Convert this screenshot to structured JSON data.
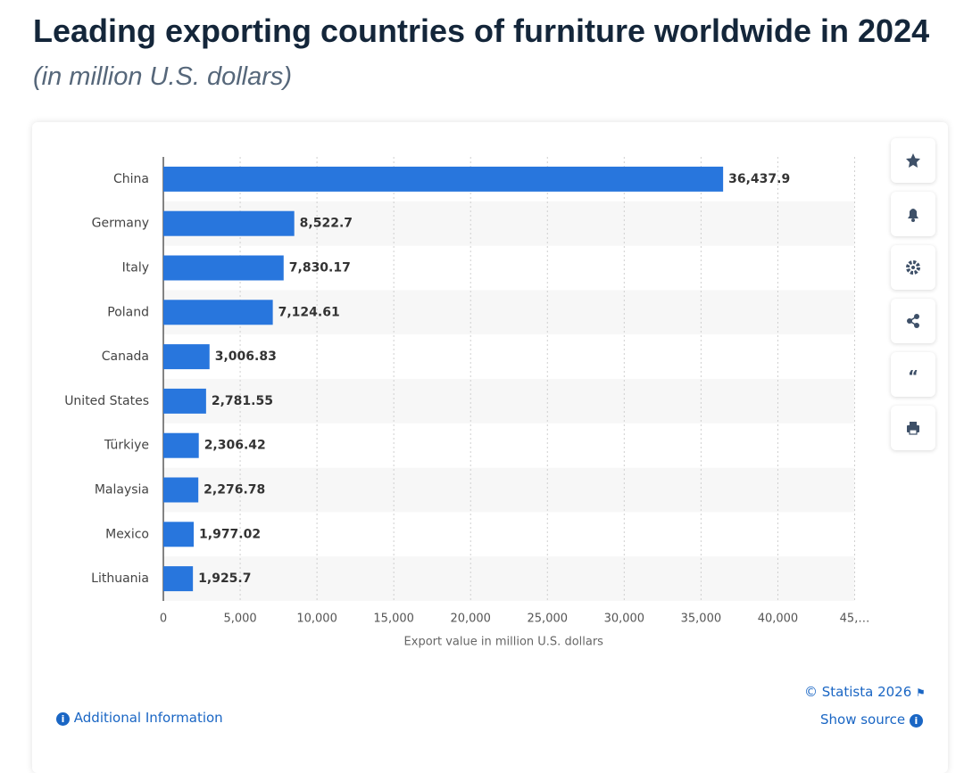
{
  "chart_data": {
    "type": "bar",
    "orientation": "horizontal",
    "title": "Leading exporting countries of furniture worldwide in 2024",
    "subtitle": "(in million U.S. dollars)",
    "categories": [
      "China",
      "Germany",
      "Italy",
      "Poland",
      "Canada",
      "United States",
      "Türkiye",
      "Malaysia",
      "Mexico",
      "Lithuania"
    ],
    "values": [
      36437.9,
      8522.7,
      7830.17,
      7124.61,
      3006.83,
      2781.55,
      2306.42,
      2276.78,
      1977.02,
      1925.7
    ],
    "value_labels": [
      "36,437.9",
      "8,522.7",
      "7,830.17",
      "7,124.61",
      "3,006.83",
      "2,781.55",
      "2,306.42",
      "2,276.78",
      "1,977.02",
      "1,925.7"
    ],
    "color": "#2876dd",
    "xlim": [
      0,
      45000
    ],
    "xticks": [
      0,
      {
        "value": 5000,
        "label": "5,000"
      },
      {
        "value": 10000,
        "label": "10,000"
      },
      {
        "value": 15000,
        "label": "15,000"
      },
      {
        "value": 20000,
        "label": "20,000"
      },
      {
        "value": 25000,
        "label": "25,000"
      },
      {
        "value": 30000,
        "label": "30,000"
      },
      {
        "value": 35000,
        "label": "35,000"
      },
      {
        "value": 40000,
        "label": "40,000"
      },
      {
        "value": 45000,
        "label": "45,…"
      }
    ],
    "xlabel": "Export value in million U.S. dollars",
    "grid": true
  },
  "footer": {
    "copyright": "© Statista 2026",
    "source": "Show source",
    "info": "Additional Information"
  }
}
